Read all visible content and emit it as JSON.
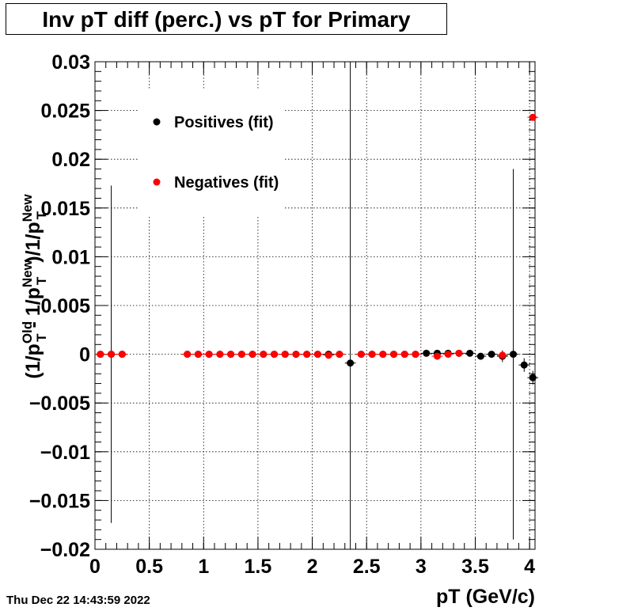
{
  "title": "Inv pT diff (perc.) vs pT for Primary",
  "timestamp": "Thu Dec 22 14:43:59 2022",
  "colors": {
    "positives": "#000000",
    "negatives": "#ff0000",
    "grid": "#000000"
  },
  "chart_data": {
    "type": "scatter",
    "title": "Inv pT diff (perc.) vs pT for Primary",
    "xlabel": "pT (GeV/c)",
    "ylabel": "(1/pT^Old - 1/pT^New)/1/pT^New",
    "ylabel_parts": {
      "open": "(1/p",
      "sub": "T",
      "sup_old": "Old",
      "mid": " - 1/p",
      "sup_new": "New",
      "close": ")/1/p"
    },
    "xlim": [
      0,
      4.05
    ],
    "ylim": [
      -0.02,
      0.03
    ],
    "xticks": [
      0,
      0.5,
      1,
      1.5,
      2,
      2.5,
      3,
      3.5,
      4
    ],
    "xtick_labels": [
      "0",
      "0.5",
      "1",
      "1.5",
      "2",
      "2.5",
      "3",
      "3.5",
      "4"
    ],
    "yticks": [
      -0.02,
      -0.015,
      -0.01,
      -0.005,
      0,
      0.005,
      0.01,
      0.015,
      0.02,
      0.025,
      0.03
    ],
    "ytick_labels": [
      "−0.02",
      "−0.015",
      "−0.01",
      "−0.005",
      "0",
      "0.005",
      "0.01",
      "0.015",
      "0.02",
      "0.025",
      "0.03"
    ],
    "grid": true,
    "legend_position": "top-left",
    "series": [
      {
        "name": "Positives (fit)",
        "color": "#000000",
        "points": [
          {
            "x": 0.05,
            "y": 0.0,
            "err": 0.0
          },
          {
            "x": 0.15,
            "y": 0.0,
            "err": 0.0173
          },
          {
            "x": 0.25,
            "y": 0.0,
            "err": 0.0
          },
          {
            "x": 0.85,
            "y": 0.0,
            "err": 0.0
          },
          {
            "x": 0.95,
            "y": 0.0,
            "err": 0.0
          },
          {
            "x": 1.05,
            "y": 0.0,
            "err": 0.0
          },
          {
            "x": 1.15,
            "y": 0.0,
            "err": 0.0
          },
          {
            "x": 1.25,
            "y": 0.0,
            "err": 0.0
          },
          {
            "x": 1.35,
            "y": 0.0,
            "err": 0.0
          },
          {
            "x": 1.45,
            "y": 0.0,
            "err": 0.0
          },
          {
            "x": 1.55,
            "y": 0.0,
            "err": 0.0
          },
          {
            "x": 1.65,
            "y": 0.0,
            "err": 0.0
          },
          {
            "x": 1.75,
            "y": 0.0,
            "err": 0.0
          },
          {
            "x": 1.85,
            "y": 0.0,
            "err": 0.0
          },
          {
            "x": 1.95,
            "y": 0.0,
            "err": 0.0
          },
          {
            "x": 2.05,
            "y": 0.0,
            "err": 0.0
          },
          {
            "x": 2.15,
            "y": 0.0,
            "err": 0.0
          },
          {
            "x": 2.25,
            "y": 0.0,
            "err": 0.0
          },
          {
            "x": 2.35,
            "y": -0.0009,
            "err": 0.0311
          },
          {
            "x": 2.45,
            "y": 0.0,
            "err": 0.0
          },
          {
            "x": 2.55,
            "y": 0.0,
            "err": 0.0
          },
          {
            "x": 2.65,
            "y": 0.0,
            "err": 0.0
          },
          {
            "x": 2.75,
            "y": 0.0,
            "err": 0.0
          },
          {
            "x": 2.85,
            "y": 0.0,
            "err": 0.0
          },
          {
            "x": 2.95,
            "y": 0.0,
            "err": 0.0
          },
          {
            "x": 3.05,
            "y": 0.0001,
            "err": 0.0002
          },
          {
            "x": 3.15,
            "y": 0.0001,
            "err": 0.0
          },
          {
            "x": 3.25,
            "y": 0.0001,
            "err": 0.0
          },
          {
            "x": 3.35,
            "y": 0.0001,
            "err": 0.0002
          },
          {
            "x": 3.45,
            "y": 0.0001,
            "err": 0.0002
          },
          {
            "x": 3.55,
            "y": -0.0002,
            "err": 0.0003
          },
          {
            "x": 3.65,
            "y": 0.0,
            "err": 0.0003
          },
          {
            "x": 3.75,
            "y": -0.0002,
            "err": 0.0006
          },
          {
            "x": 3.85,
            "y": 0.0,
            "err": 0.019
          },
          {
            "x": 3.95,
            "y": -0.0011,
            "err": 0.0007
          },
          {
            "x": 4.03,
            "y": -0.0024,
            "err": 0.0007
          }
        ]
      },
      {
        "name": "Negatives (fit)",
        "color": "#ff0000",
        "points": [
          {
            "x": 0.05,
            "y": 0.0,
            "err": 0.0
          },
          {
            "x": 0.15,
            "y": 0.0,
            "err": 0.0
          },
          {
            "x": 0.25,
            "y": 0.0,
            "err": 0.0
          },
          {
            "x": 0.85,
            "y": 0.0,
            "err": 0.0
          },
          {
            "x": 0.95,
            "y": 0.0,
            "err": 0.0
          },
          {
            "x": 1.05,
            "y": 0.0,
            "err": 0.0
          },
          {
            "x": 1.15,
            "y": 0.0,
            "err": 0.0
          },
          {
            "x": 1.25,
            "y": 0.0,
            "err": 0.0
          },
          {
            "x": 1.35,
            "y": 0.0,
            "err": 0.0
          },
          {
            "x": 1.45,
            "y": 0.0,
            "err": 0.0
          },
          {
            "x": 1.55,
            "y": 0.0,
            "err": 0.0
          },
          {
            "x": 1.65,
            "y": 0.0,
            "err": 0.0
          },
          {
            "x": 1.75,
            "y": 0.0,
            "err": 0.0
          },
          {
            "x": 1.85,
            "y": 0.0,
            "err": 0.0
          },
          {
            "x": 1.95,
            "y": 0.0,
            "err": 0.0
          },
          {
            "x": 2.05,
            "y": 0.0,
            "err": 0.0
          },
          {
            "x": 2.15,
            "y": -0.0001,
            "err": 0.0
          },
          {
            "x": 2.25,
            "y": 0.0,
            "err": 0.0
          },
          {
            "x": 2.45,
            "y": 0.0,
            "err": 0.0
          },
          {
            "x": 2.55,
            "y": 0.0,
            "err": 0.0
          },
          {
            "x": 2.65,
            "y": 0.0,
            "err": 0.0
          },
          {
            "x": 2.75,
            "y": 0.0,
            "err": 0.0
          },
          {
            "x": 2.85,
            "y": 0.0,
            "err": 0.0
          },
          {
            "x": 2.95,
            "y": 0.0,
            "err": 0.0
          },
          {
            "x": 3.15,
            "y": -0.0002,
            "err": 0.0003
          },
          {
            "x": 3.25,
            "y": 0.0,
            "err": 0.0
          },
          {
            "x": 3.35,
            "y": 0.0001,
            "err": 0.0
          },
          {
            "x": 3.75,
            "y": -0.0001,
            "err": 0.0004
          },
          {
            "x": 4.03,
            "y": 0.0243,
            "err": 0.0
          }
        ]
      }
    ]
  }
}
